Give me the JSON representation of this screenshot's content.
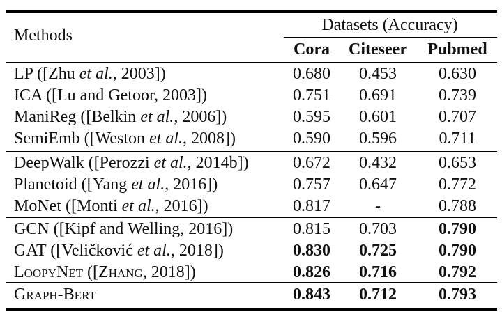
{
  "header": {
    "methods_label": "Methods",
    "group_label": "Datasets (Accuracy)",
    "columns": [
      "Cora",
      "Citeseer",
      "Pubmed"
    ]
  },
  "rows": [
    {
      "pre": "LP ([Zhu ",
      "em": "et al.",
      "post": ", 2003])",
      "values": [
        "0.680",
        "0.453",
        "0.630"
      ],
      "bold": [
        false,
        false,
        false
      ]
    },
    {
      "pre": "ICA ([Lu and Getoor, 2003])",
      "em": "",
      "post": "",
      "values": [
        "0.751",
        "0.691",
        "0.739"
      ],
      "bold": [
        false,
        false,
        false
      ]
    },
    {
      "pre": "ManiReg ([Belkin ",
      "em": "et al.",
      "post": ", 2006])",
      "values": [
        "0.595",
        "0.601",
        "0.707"
      ],
      "bold": [
        false,
        false,
        false
      ]
    },
    {
      "pre": "SemiEmb ([Weston ",
      "em": "et al.",
      "post": ", 2008])",
      "values": [
        "0.590",
        "0.596",
        "0.711"
      ],
      "bold": [
        false,
        false,
        false
      ]
    },
    {
      "pre": "DeepWalk ([Perozzi ",
      "em": "et al.",
      "post": ", 2014b])",
      "values": [
        "0.672",
        "0.432",
        "0.653"
      ],
      "bold": [
        false,
        false,
        false
      ]
    },
    {
      "pre": "Planetoid ([Yang ",
      "em": "et al.",
      "post": ", 2016])",
      "values": [
        "0.757",
        "0.647",
        "0.772"
      ],
      "bold": [
        false,
        false,
        false
      ]
    },
    {
      "pre": "MoNet ([Monti ",
      "em": "et al.",
      "post": ", 2016])",
      "values": [
        "0.817",
        "-",
        "0.788"
      ],
      "bold": [
        false,
        false,
        false
      ]
    },
    {
      "pre": "GCN ([Kipf and Welling, 2016])",
      "em": "",
      "post": "",
      "values": [
        "0.815",
        "0.703",
        "0.790"
      ],
      "bold": [
        false,
        false,
        true
      ]
    },
    {
      "pre": "GAT ([Veličković ",
      "em": "et al.",
      "post": ", 2018])",
      "values": [
        "0.830",
        "0.725",
        "0.790"
      ],
      "bold": [
        true,
        true,
        true
      ]
    },
    {
      "pre": "LoopyNet",
      "em": "",
      "post": " ([Zhang, 2018])",
      "values": [
        "0.826",
        "0.716",
        "0.792"
      ],
      "bold": [
        true,
        true,
        true
      ],
      "smallcaps": true
    },
    {
      "pre": "Graph-Bert",
      "em": "",
      "post": "",
      "values": [
        "0.843",
        "0.712",
        "0.793"
      ],
      "bold": [
        true,
        true,
        true
      ],
      "smallcaps": true
    }
  ]
}
